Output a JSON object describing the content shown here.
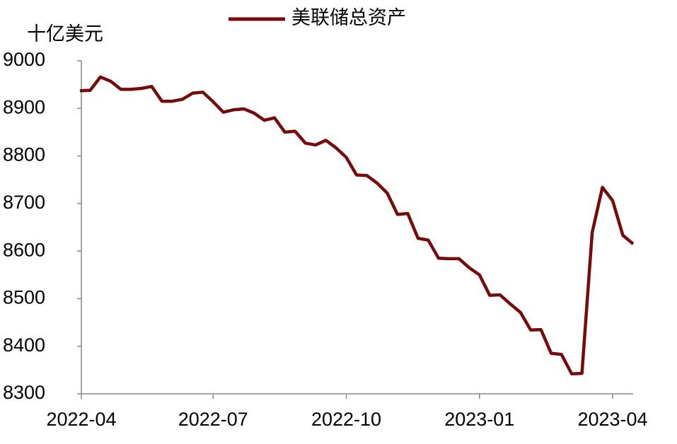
{
  "chart_data": {
    "type": "line",
    "y_label": "十亿美元",
    "categories": [
      "2022-04",
      null,
      null,
      null,
      null,
      null,
      null,
      null,
      null,
      null,
      null,
      null,
      null,
      "2022-07",
      null,
      null,
      null,
      null,
      null,
      null,
      null,
      null,
      null,
      null,
      null,
      null,
      "2022-10",
      null,
      null,
      null,
      null,
      null,
      null,
      null,
      null,
      null,
      null,
      null,
      null,
      "2023-01",
      null,
      null,
      null,
      null,
      null,
      null,
      null,
      null,
      null,
      null,
      null,
      null,
      "2023-04",
      null,
      null
    ],
    "series": [
      {
        "name": "美联储总资产",
        "color": "#750b0b",
        "values": [
          8937,
          8938,
          8966,
          8957,
          8940,
          8940,
          8942,
          8946,
          8915,
          8915,
          8919,
          8932,
          8934,
          8914,
          8892,
          8897,
          8899,
          8890,
          8875,
          8880,
          8850,
          8852,
          8827,
          8823,
          8833,
          8817,
          8797,
          8760,
          8759,
          8743,
          8722,
          8677,
          8679,
          8627,
          8623,
          8585,
          8584,
          8584,
          8565,
          8550,
          8507,
          8508,
          8489,
          8471,
          8434,
          8435,
          8385,
          8383,
          8342,
          8343,
          8639,
          8734,
          8706,
          8633,
          8615
        ]
      }
    ],
    "ylim": [
      8300,
      9000
    ],
    "yticks": [
      8300,
      8400,
      8500,
      8600,
      8700,
      8800,
      8900,
      9000
    ],
    "legend": "top"
  }
}
